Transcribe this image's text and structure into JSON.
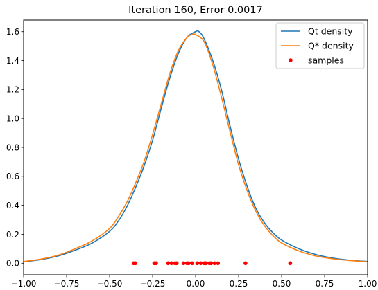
{
  "chart_data": {
    "type": "line",
    "title": "Iteration 160, Error 0.0017",
    "xlabel": "",
    "ylabel": "",
    "xlim": [
      -1.0,
      1.0
    ],
    "ylim": [
      -0.08,
      1.68
    ],
    "grid": false,
    "legend_position": "top-right",
    "x_ticks": [
      -1.0,
      -0.75,
      -0.5,
      -0.25,
      0.0,
      0.25,
      0.5,
      0.75,
      1.0
    ],
    "x_tick_labels": [
      "−1.00",
      "−0.75",
      "−0.50",
      "−0.25",
      "0.00",
      "0.25",
      "0.50",
      "0.75",
      "1.00"
    ],
    "y_ticks": [
      0.0,
      0.2,
      0.4,
      0.6,
      0.8,
      1.0,
      1.2,
      1.4,
      1.6
    ],
    "y_tick_labels": [
      "0.0",
      "0.2",
      "0.4",
      "0.6",
      "0.8",
      "1.0",
      "1.2",
      "1.4",
      "1.6"
    ],
    "series": [
      {
        "name": "Qt density",
        "kind": "line",
        "color": "#1f77b4",
        "x": [
          -1.0,
          -0.9,
          -0.8,
          -0.7,
          -0.6,
          -0.5,
          -0.45,
          -0.4,
          -0.35,
          -0.3,
          -0.25,
          -0.2,
          -0.15,
          -0.1,
          -0.05,
          0.0,
          0.02,
          0.05,
          0.1,
          0.15,
          0.2,
          0.25,
          0.3,
          0.35,
          0.4,
          0.45,
          0.5,
          0.6,
          0.7,
          0.8,
          0.9,
          1.0
        ],
        "y": [
          0.01,
          0.025,
          0.05,
          0.09,
          0.14,
          0.22,
          0.29,
          0.39,
          0.52,
          0.67,
          0.85,
          1.07,
          1.28,
          1.45,
          1.56,
          1.6,
          1.6,
          1.55,
          1.4,
          1.2,
          0.95,
          0.72,
          0.53,
          0.38,
          0.28,
          0.21,
          0.16,
          0.1,
          0.06,
          0.035,
          0.02,
          0.012
        ]
      },
      {
        "name": "Q* density",
        "kind": "line",
        "color": "#ff7f0e",
        "x": [
          -1.0,
          -0.9,
          -0.8,
          -0.7,
          -0.6,
          -0.5,
          -0.45,
          -0.4,
          -0.35,
          -0.3,
          -0.25,
          -0.2,
          -0.15,
          -0.1,
          -0.05,
          -0.02,
          0.0,
          0.05,
          0.1,
          0.15,
          0.2,
          0.25,
          0.3,
          0.35,
          0.4,
          0.45,
          0.5,
          0.6,
          0.7,
          0.8,
          0.9,
          1.0
        ],
        "y": [
          0.012,
          0.028,
          0.055,
          0.1,
          0.155,
          0.24,
          0.32,
          0.42,
          0.55,
          0.7,
          0.89,
          1.1,
          1.31,
          1.47,
          1.56,
          1.58,
          1.58,
          1.53,
          1.37,
          1.15,
          0.91,
          0.68,
          0.5,
          0.36,
          0.26,
          0.19,
          0.14,
          0.085,
          0.05,
          0.03,
          0.018,
          0.01
        ]
      },
      {
        "name": "samples",
        "kind": "scatter",
        "color": "#ff0000",
        "x": [
          -0.36,
          -0.35,
          -0.24,
          -0.23,
          -0.16,
          -0.14,
          -0.12,
          -0.11,
          -0.07,
          -0.05,
          -0.04,
          -0.02,
          0.01,
          0.03,
          0.05,
          0.06,
          0.08,
          0.09,
          0.11,
          0.13,
          0.29,
          0.55
        ],
        "y": [
          0,
          0,
          0,
          0,
          0,
          0,
          0,
          0,
          0,
          0,
          0,
          0,
          0,
          0,
          0,
          0,
          0,
          0,
          0,
          0,
          0,
          0
        ]
      }
    ]
  }
}
